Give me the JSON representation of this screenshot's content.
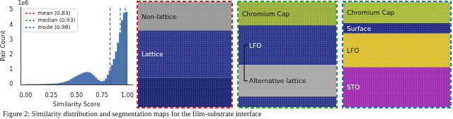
{
  "chart_data": {
    "type": "histogram",
    "x_label": "Similarity Score",
    "y_label": "Pair Count",
    "y_offset_label": "1e6",
    "bins": [
      0,
      0.02,
      0.04,
      0.06,
      0.08,
      0.1,
      0.12,
      0.14,
      0.16,
      0.18,
      0.2,
      0.22,
      0.24,
      0.26,
      0.28,
      0.3,
      0.32,
      0.34,
      0.36,
      0.38,
      0.4,
      0.42,
      0.44,
      0.46,
      0.48,
      0.5,
      0.52,
      0.54,
      0.56,
      0.58,
      0.6,
      0.62,
      0.64,
      0.66,
      0.68,
      0.7,
      0.72,
      0.74,
      0.76,
      0.78,
      0.8,
      0.82,
      0.84,
      0.86,
      0.88,
      0.9,
      0.92,
      0.94,
      0.96,
      0.98,
      1.0
    ],
    "values": [
      0.02,
      0.02,
      0.02,
      0.02,
      0.02,
      0.02,
      0.02,
      0.03,
      0.03,
      0.03,
      0.04,
      0.04,
      0.05,
      0.05,
      0.06,
      0.07,
      0.09,
      0.11,
      0.14,
      0.18,
      0.23,
      0.29,
      0.36,
      0.44,
      0.52,
      0.6,
      0.67,
      0.73,
      0.78,
      0.82,
      0.83,
      0.8,
      0.72,
      0.6,
      0.45,
      0.32,
      0.24,
      0.2,
      0.25,
      0.4,
      0.65,
      0.95,
      1.3,
      1.7,
      2.2,
      2.8,
      3.5,
      4.3,
      4.8,
      4.85
    ],
    "color": "#4c72b0",
    "xlim": [
      -0.05,
      1.05
    ],
    "ylim": [
      0,
      5.2
    ],
    "xticks": [
      {
        "value": 0,
        "label": "0.00"
      },
      {
        "value": 0.25,
        "label": "0.25"
      },
      {
        "value": 0.5,
        "label": "0.50"
      },
      {
        "value": 0.75,
        "label": "0.75"
      },
      {
        "value": 1,
        "label": "1.00"
      }
    ],
    "yticks": [
      0,
      1,
      2,
      3,
      4,
      5
    ],
    "grid": false,
    "legend": "upper left",
    "reference_lines": [
      {
        "name": "mean (0.83)",
        "value": 0.83,
        "color": "#d62728",
        "line_style": "dashed"
      },
      {
        "name": "median (0.93)",
        "value": 0.93,
        "color": "#2ca02c",
        "line_style": "dashed"
      },
      {
        "name": "mode (0.98)",
        "value": 0.98,
        "color": "#1f77b4",
        "line_style": "dashed"
      }
    ]
  },
  "panels": [
    {
      "border_color": "#d62728",
      "regions": [
        {
          "label": "Non-lattice",
          "color": "#9a9a9a"
        },
        {
          "label": "Lattice",
          "color": "#2f3a8f"
        },
        {
          "color": "#1f2675"
        }
      ]
    },
    {
      "border_color": "#2ca02c",
      "regions": [
        {
          "label": "Chromium Cap",
          "color": "#9bb03c"
        },
        {
          "label": "LFO",
          "color": "#2f3a8f"
        },
        {
          "label": "Alternative lattice",
          "color": "#a8a8a8"
        },
        {
          "color": "#2f3a8f"
        }
      ]
    },
    {
      "border_color": "#1f77b4",
      "regions": [
        {
          "label": "Chromium Cap",
          "color": "#a9bb3a"
        },
        {
          "label": "Surface",
          "color": "#262d80"
        },
        {
          "label": "LFO",
          "color": "#dcbf2e"
        },
        {
          "label": "STO",
          "color": "#a12fb0"
        }
      ]
    }
  ],
  "caption": "Figure 2: Similarity distribution and segmentation maps for the film-substrate interface"
}
